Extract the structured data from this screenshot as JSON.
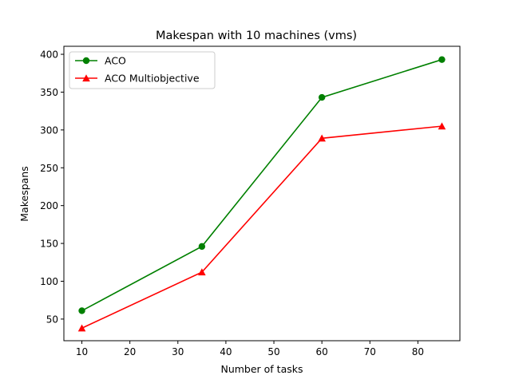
{
  "chart_data": {
    "type": "line",
    "title": "Makespan with 10 machines (vms)",
    "xlabel": "Number of tasks",
    "ylabel": "Makespans",
    "x": [
      10,
      35,
      60,
      85
    ],
    "xlim": [
      6.25,
      88.75
    ],
    "ylim": [
      21.4,
      410.6
    ],
    "xticks": [
      10,
      20,
      30,
      40,
      50,
      60,
      70,
      80
    ],
    "yticks": [
      50,
      100,
      150,
      200,
      250,
      300,
      350,
      400
    ],
    "grid": false,
    "legend_position": "top-left",
    "series": [
      {
        "name": "ACO",
        "values": [
          61,
          146,
          343,
          393
        ],
        "color": "#008000",
        "marker": "circle"
      },
      {
        "name": "ACO Multiobjective",
        "values": [
          38,
          112,
          289,
          305
        ],
        "color": "#ff0000",
        "marker": "triangle"
      }
    ]
  }
}
